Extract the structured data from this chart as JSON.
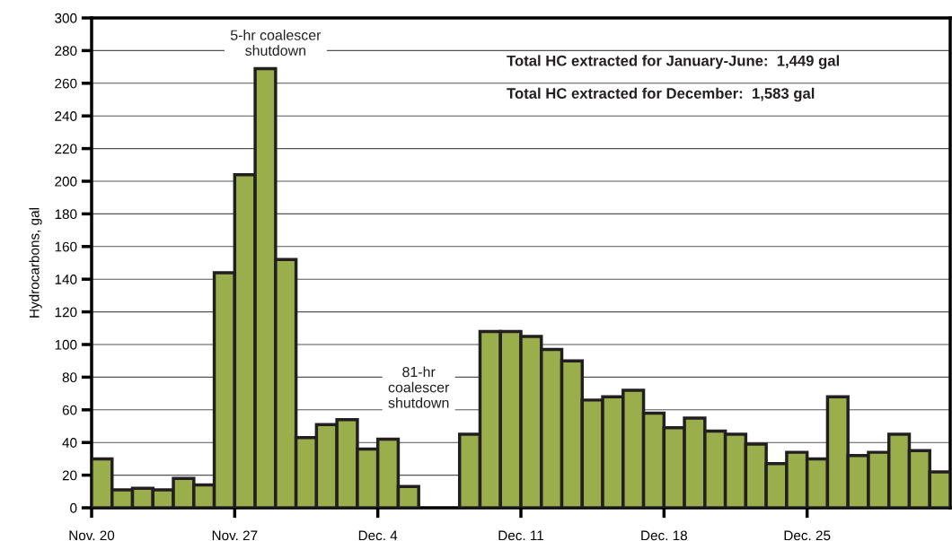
{
  "chart_data": {
    "type": "bar",
    "ylabel": "Hydrocarbons, gal",
    "categories": [
      "Nov. 20",
      null,
      null,
      null,
      null,
      null,
      null,
      "Nov. 27",
      null,
      null,
      null,
      null,
      null,
      null,
      "Dec. 4",
      null,
      null,
      null,
      null,
      null,
      null,
      "Dec. 11",
      null,
      null,
      null,
      null,
      null,
      null,
      "Dec. 18",
      null,
      null,
      null,
      null,
      null,
      null,
      "Dec. 25",
      null,
      null,
      null,
      null,
      null,
      null
    ],
    "values": [
      30,
      11,
      12,
      11,
      18,
      14,
      144,
      204,
      269,
      152,
      43,
      51,
      54,
      36,
      42,
      13,
      null,
      null,
      45,
      108,
      108,
      105,
      97,
      90,
      66,
      68,
      72,
      58,
      49,
      55,
      47,
      45,
      39,
      27,
      34,
      30,
      68,
      32,
      34,
      45,
      35,
      22
    ],
    "color": "#9aae4c",
    "ylim": [
      0,
      300
    ],
    "yticks": [
      0,
      20,
      40,
      60,
      80,
      100,
      120,
      140,
      160,
      180,
      200,
      220,
      240,
      260,
      280,
      300
    ],
    "grid": "y",
    "annotations": [
      "5-hr coalescer shutdown",
      "81-hr coalescer shutdown",
      "Total HC extracted for January-June:  1,449 gal",
      "Total HC extracted for December:  1,583 gal"
    ]
  }
}
